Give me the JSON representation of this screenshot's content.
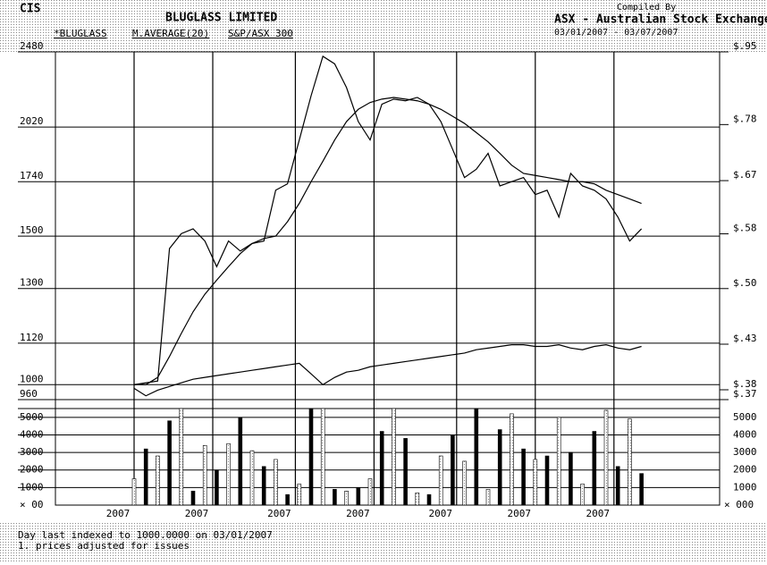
{
  "header": {
    "code": "CIS",
    "title": "BLUGLASS LIMITED",
    "compiled": "Compiled By",
    "source": "ASX - Australian Stock Exchange",
    "range": "03/01/2007 - 03/07/2007"
  },
  "footer": {
    "line1": "Day last indexed to 1000.0000 on 03/01/2007",
    "line2": "1. prices adjusted for issues"
  },
  "chart_data": {
    "type": "line",
    "log_scale": true,
    "grid": true,
    "xlim": [
      0,
      130
    ],
    "xticks": [
      {
        "value": 0,
        "label": "2007"
      },
      {
        "value": 20,
        "label": "2007"
      },
      {
        "value": 41,
        "label": "2007"
      },
      {
        "value": 61,
        "label": "2007"
      },
      {
        "value": 82,
        "label": "2007"
      },
      {
        "value": 102,
        "label": "2007"
      },
      {
        "value": 122,
        "label": "2007"
      }
    ],
    "ylim": [
      960,
      2480
    ],
    "yticks": [
      2480,
      2020,
      1740,
      1500,
      1300,
      1120,
      1000,
      960
    ],
    "y2lim": [
      0.37,
      0.95
    ],
    "y2ticks": [
      {
        "value": 0.95,
        "label": "$.95"
      },
      {
        "value": 0.78,
        "label": "$.78"
      },
      {
        "value": 0.67,
        "label": "$.67"
      },
      {
        "value": 0.58,
        "label": "$.58"
      },
      {
        "value": 0.5,
        "label": "$.50"
      },
      {
        "value": 0.43,
        "label": "$.43"
      },
      {
        "value": 0.38,
        "label": "$.38"
      },
      {
        "value": 0.37,
        "label": "$.37"
      }
    ],
    "x": [
      0,
      3,
      6,
      9,
      12,
      15,
      18,
      21,
      24,
      27,
      30,
      33,
      36,
      39,
      42,
      45,
      48,
      51,
      54,
      57,
      60,
      63,
      66,
      69,
      72,
      75,
      78,
      81,
      84,
      87,
      90,
      93,
      96,
      99,
      102,
      105,
      108,
      111,
      114,
      117,
      120,
      123,
      126,
      129
    ],
    "series": [
      {
        "name": "*BLUGLASS",
        "color": "#000000",
        "values": [
          1000,
          1005,
          1010,
          1450,
          1510,
          1530,
          1480,
          1380,
          1480,
          1440,
          1470,
          1480,
          1700,
          1730,
          1950,
          2200,
          2450,
          2400,
          2250,
          2050,
          1950,
          2150,
          2180,
          2170,
          2190,
          2150,
          2050,
          1900,
          1760,
          1800,
          1880,
          1720,
          1740,
          1760,
          1680,
          1700,
          1580,
          1780,
          1720,
          1700,
          1660,
          1580,
          1480,
          1530
        ]
      },
      {
        "name": "M.AVERAGE(20)",
        "color": "#000000",
        "values": [
          1000,
          1000,
          1020,
          1080,
          1150,
          1220,
          1280,
          1330,
          1380,
          1430,
          1470,
          1490,
          1500,
          1560,
          1640,
          1740,
          1840,
          1950,
          2050,
          2120,
          2160,
          2180,
          2190,
          2180,
          2170,
          2150,
          2120,
          2080,
          2040,
          1990,
          1940,
          1880,
          1820,
          1780,
          1770,
          1760,
          1750,
          1740,
          1740,
          1730,
          1700,
          1680,
          1660,
          1640
        ]
      },
      {
        "name": "S&P/ASX 300",
        "color": "#000000",
        "values": [
          990,
          970,
          985,
          995,
          1005,
          1015,
          1020,
          1025,
          1030,
          1035,
          1040,
          1045,
          1050,
          1055,
          1060,
          1030,
          1000,
          1020,
          1035,
          1040,
          1050,
          1055,
          1060,
          1065,
          1070,
          1075,
          1080,
          1085,
          1090,
          1100,
          1105,
          1110,
          1115,
          1115,
          1110,
          1110,
          1115,
          1105,
          1100,
          1110,
          1115,
          1105,
          1100,
          1110
        ]
      }
    ],
    "volume": {
      "values": [
        1500,
        3200,
        2800,
        4800,
        5500,
        800,
        3400,
        2000,
        3500,
        5000,
        3100,
        2200,
        2600,
        600,
        1200,
        5500,
        5500,
        900,
        800,
        1000,
        1500,
        4200,
        5500,
        3800,
        700,
        600,
        2800,
        4000,
        2500,
        5500,
        900,
        4300,
        5200,
        3200,
        2600,
        2800,
        5000,
        3000,
        1200,
        4200,
        5400,
        2200,
        4900,
        1800
      ],
      "ylim": [
        0,
        5500
      ],
      "yticks": [
        5000,
        4000,
        3000,
        2000,
        1000
      ],
      "unit_left": "× 00",
      "unit_right": "× 000"
    }
  }
}
